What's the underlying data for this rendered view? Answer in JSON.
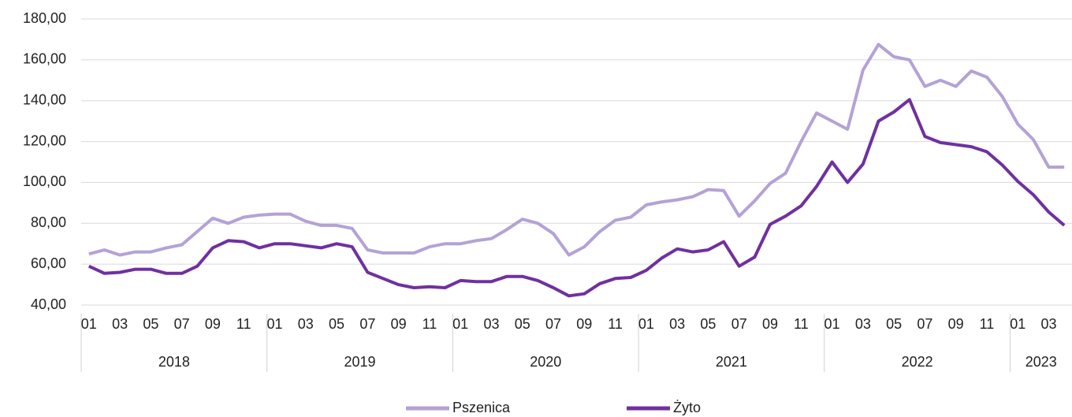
{
  "chart_data": {
    "type": "line",
    "categories": [
      "01",
      null,
      "03",
      null,
      "05",
      null,
      "07",
      null,
      "09",
      null,
      "11",
      null,
      "01",
      null,
      "03",
      null,
      "05",
      null,
      "07",
      null,
      "09",
      null,
      "11",
      null,
      "01",
      null,
      "03",
      null,
      "05",
      null,
      "07",
      null,
      "09",
      null,
      "11",
      null,
      "01",
      null,
      "03",
      null,
      "05",
      null,
      "07",
      null,
      "09",
      null,
      "11",
      null,
      "01",
      null,
      "03",
      null,
      "05",
      null,
      "07",
      null,
      "09",
      null,
      "11",
      null,
      "01",
      null,
      "03",
      null
    ],
    "year_labels": [
      "2018",
      "2019",
      "2020",
      "2021",
      "2022",
      "2023"
    ],
    "series": [
      {
        "name": "Pszenica",
        "color": "#b4a2d6",
        "values": [
          65,
          67,
          64.5,
          66,
          66,
          68,
          69.5,
          76,
          82.5,
          80,
          83,
          84,
          84.5,
          84.5,
          81,
          79,
          79,
          77.5,
          67,
          65.5,
          65.5,
          65.5,
          68.5,
          70,
          70,
          71.5,
          72.5,
          77,
          82,
          80,
          75,
          64.5,
          68.5,
          76,
          81.5,
          83,
          89,
          90.5,
          91.5,
          93,
          96.5,
          96,
          83.5,
          91,
          99.5,
          104.5,
          120,
          134,
          130,
          126,
          155,
          167.5,
          161.5,
          160,
          147,
          150,
          147,
          154.5,
          151.5,
          142,
          128.5,
          121,
          107.5,
          107.5
        ]
      },
      {
        "name": "Żyto",
        "color": "#7030a0",
        "values": [
          59,
          55.5,
          56,
          57.5,
          57.5,
          55.5,
          55.5,
          59,
          68,
          71.5,
          71,
          68,
          70,
          70,
          69,
          68,
          70,
          68.5,
          56,
          53,
          50,
          48.5,
          49,
          48.5,
          52,
          51.5,
          51.5,
          54,
          54,
          52,
          48.5,
          44.5,
          45.5,
          50.5,
          53,
          53.5,
          57,
          63,
          67.5,
          66,
          67,
          71,
          59,
          63.5,
          79.5,
          83.5,
          88.5,
          98,
          110,
          100,
          109,
          130,
          134.5,
          140.5,
          122.5,
          119.5,
          118.5,
          117.5,
          115,
          108.5,
          100.5,
          94,
          85.5,
          79
        ]
      }
    ],
    "ylim": [
      40,
      180
    ],
    "yticks": [
      {
        "value": 40,
        "label": "40,00"
      },
      {
        "value": 60,
        "label": "60,00"
      },
      {
        "value": 80,
        "label": "80,00"
      },
      {
        "value": 100,
        "label": "100,00"
      },
      {
        "value": 120,
        "label": "120,00"
      },
      {
        "value": 140,
        "label": "140,00"
      },
      {
        "value": 160,
        "label": "160,00"
      },
      {
        "value": 180,
        "label": "180,00"
      }
    ],
    "grid": true,
    "legend": "bottom"
  }
}
